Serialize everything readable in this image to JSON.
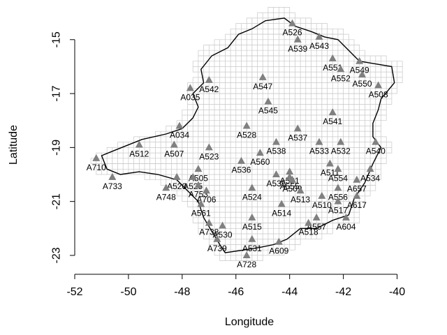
{
  "chart_data": {
    "type": "scatter",
    "xlabel": "Longitude",
    "ylabel": "Latitude",
    "xlim": [
      -52,
      -39
    ],
    "ylim": [
      -23.7,
      -14.1
    ],
    "x_ticks": [
      -52,
      -50,
      -48,
      -46,
      -44,
      -42,
      -40
    ],
    "y_ticks": [
      -15,
      -17,
      -19,
      -21,
      -23
    ],
    "grid_overlay": true,
    "marker": "triangle",
    "marker_color": "#808080",
    "region_outline_color": "#000000",
    "grid_color": "#c8c8c8",
    "stations": [
      {
        "name": "A526",
        "x": -43.9,
        "y": -14.4
      },
      {
        "name": "A539",
        "x": -43.7,
        "y": -15.0
      },
      {
        "name": "A543",
        "x": -42.9,
        "y": -14.9
      },
      {
        "name": "A551",
        "x": -42.4,
        "y": -15.7
      },
      {
        "name": "A549",
        "x": -41.4,
        "y": -15.8
      },
      {
        "name": "A552",
        "x": -42.1,
        "y": -16.1
      },
      {
        "name": "A550",
        "x": -41.3,
        "y": -16.3
      },
      {
        "name": "A547",
        "x": -45.0,
        "y": -16.4
      },
      {
        "name": "A542",
        "x": -47.0,
        "y": -16.5
      },
      {
        "name": "A508",
        "x": -40.7,
        "y": -16.7
      },
      {
        "name": "A035",
        "x": -47.7,
        "y": -16.8
      },
      {
        "name": "A545",
        "x": -44.8,
        "y": -17.3
      },
      {
        "name": "A541",
        "x": -42.4,
        "y": -17.7
      },
      {
        "name": "A034",
        "x": -48.1,
        "y": -18.2
      },
      {
        "name": "A528",
        "x": -45.6,
        "y": -18.2
      },
      {
        "name": "A537",
        "x": -43.7,
        "y": -18.3
      },
      {
        "name": "A512",
        "x": -49.6,
        "y": -18.9
      },
      {
        "name": "A507",
        "x": -48.3,
        "y": -18.9
      },
      {
        "name": "A523",
        "x": -47.0,
        "y": -19.0
      },
      {
        "name": "A538",
        "x": -44.5,
        "y": -18.8
      },
      {
        "name": "A533",
        "x": -42.9,
        "y": -18.8
      },
      {
        "name": "A532",
        "x": -42.1,
        "y": -18.8
      },
      {
        "name": "A540",
        "x": -40.8,
        "y": -18.8
      },
      {
        "name": "A560",
        "x": -45.1,
        "y": -19.2
      },
      {
        "name": "A536",
        "x": -45.8,
        "y": -19.5
      },
      {
        "name": "A710",
        "x": -51.2,
        "y": -19.4
      },
      {
        "name": "A511",
        "x": -42.5,
        "y": -19.6
      },
      {
        "name": "A505",
        "x": -47.4,
        "y": -19.8
      },
      {
        "name": "A534",
        "x": -41.0,
        "y": -19.8
      },
      {
        "name": "A554",
        "x": -42.2,
        "y": -19.8
      },
      {
        "name": "A535",
        "x": -44.5,
        "y": -20.0
      },
      {
        "name": "A521",
        "x": -44.0,
        "y": -19.9
      },
      {
        "name": "A555",
        "x": -44.0,
        "y": -20.1
      },
      {
        "name": "A509",
        "x": -43.9,
        "y": -20.2
      },
      {
        "name": "A733",
        "x": -50.6,
        "y": -20.1
      },
      {
        "name": "A520",
        "x": -48.2,
        "y": -20.1
      },
      {
        "name": "A525",
        "x": -47.6,
        "y": -20.1
      },
      {
        "name": "A657",
        "x": -41.5,
        "y": -20.2
      },
      {
        "name": "A753",
        "x": -47.4,
        "y": -20.4
      },
      {
        "name": "A748",
        "x": -48.6,
        "y": -20.5
      },
      {
        "name": "A524",
        "x": -45.4,
        "y": -20.5
      },
      {
        "name": "A556",
        "x": -42.2,
        "y": -20.5
      },
      {
        "name": "A706",
        "x": -47.1,
        "y": -20.6
      },
      {
        "name": "A513",
        "x": -43.6,
        "y": -20.6
      },
      {
        "name": "A517",
        "x": -42.2,
        "y": -21.0
      },
      {
        "name": "A510",
        "x": -42.8,
        "y": -20.8
      },
      {
        "name": "A617",
        "x": -41.5,
        "y": -20.8
      },
      {
        "name": "A561",
        "x": -47.3,
        "y": -21.1
      },
      {
        "name": "A514",
        "x": -44.3,
        "y": -21.1
      },
      {
        "name": "A557",
        "x": -43.0,
        "y": -21.6
      },
      {
        "name": "A518",
        "x": -43.3,
        "y": -21.8
      },
      {
        "name": "A604",
        "x": -41.9,
        "y": -21.6
      },
      {
        "name": "A515",
        "x": -45.4,
        "y": -21.6
      },
      {
        "name": "A738",
        "x": -47.0,
        "y": -21.8
      },
      {
        "name": "A530",
        "x": -46.5,
        "y": -21.9
      },
      {
        "name": "A739",
        "x": -46.7,
        "y": -22.4
      },
      {
        "name": "A531",
        "x": -45.4,
        "y": -22.4
      },
      {
        "name": "A609",
        "x": -44.4,
        "y": -22.5
      },
      {
        "name": "A728",
        "x": -45.6,
        "y": -23.0
      }
    ]
  }
}
